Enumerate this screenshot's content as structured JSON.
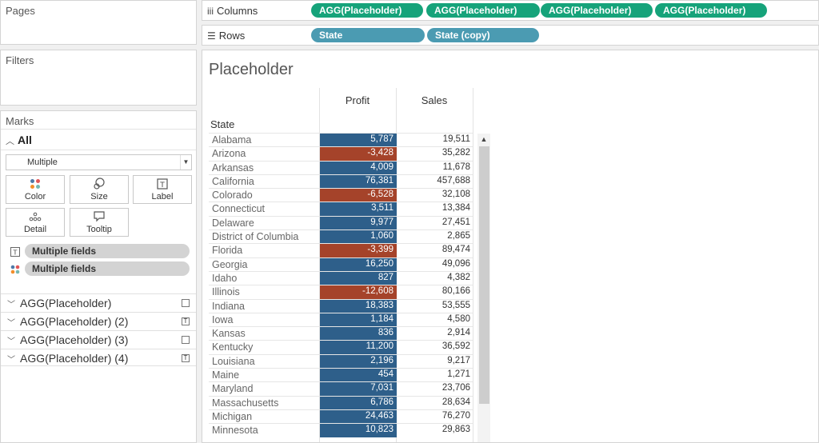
{
  "pages": {
    "title": "Pages"
  },
  "filters": {
    "title": "Filters"
  },
  "marks": {
    "title": "Marks",
    "all_label": "All",
    "mark_type": "Multiple",
    "buttons": {
      "color": "Color",
      "size": "Size",
      "label": "Label",
      "detail": "Detail",
      "tooltip": "Tooltip"
    },
    "fields": [
      "Multiple fields",
      "Multiple fields"
    ],
    "agg_cards": [
      "AGG(Placeholder)",
      "AGG(Placeholder) (2)",
      "AGG(Placeholder) (3)",
      "AGG(Placeholder) (4)"
    ]
  },
  "columns_shelf": {
    "label": "Columns",
    "pills": [
      "AGG(Placeholder)",
      "AGG(Placeholder)",
      "AGG(Placeholder)",
      "AGG(Placeholder)"
    ]
  },
  "rows_shelf": {
    "label": "Rows",
    "pills": [
      "State",
      "State (copy)"
    ]
  },
  "view": {
    "title": "Placeholder",
    "row_header": "State",
    "columns": [
      "Profit",
      "Sales"
    ]
  },
  "colors": {
    "positive": "#2e5f8a",
    "negative": "#a5432a",
    "green_pill": "#16a37a",
    "blue_pill": "#4b9bb2"
  },
  "table": {
    "rows": [
      {
        "state": "Alabama",
        "profit": "5,787",
        "sales": "19,511",
        "negative": false
      },
      {
        "state": "Arizona",
        "profit": "-3,428",
        "sales": "35,282",
        "negative": true
      },
      {
        "state": "Arkansas",
        "profit": "4,009",
        "sales": "11,678",
        "negative": false
      },
      {
        "state": "California",
        "profit": "76,381",
        "sales": "457,688",
        "negative": false
      },
      {
        "state": "Colorado",
        "profit": "-6,528",
        "sales": "32,108",
        "negative": true
      },
      {
        "state": "Connecticut",
        "profit": "3,511",
        "sales": "13,384",
        "negative": false
      },
      {
        "state": "Delaware",
        "profit": "9,977",
        "sales": "27,451",
        "negative": false
      },
      {
        "state": "District of Columbia",
        "profit": "1,060",
        "sales": "2,865",
        "negative": false
      },
      {
        "state": "Florida",
        "profit": "-3,399",
        "sales": "89,474",
        "negative": true
      },
      {
        "state": "Georgia",
        "profit": "16,250",
        "sales": "49,096",
        "negative": false
      },
      {
        "state": "Idaho",
        "profit": "827",
        "sales": "4,382",
        "negative": false
      },
      {
        "state": "Illinois",
        "profit": "-12,608",
        "sales": "80,166",
        "negative": true
      },
      {
        "state": "Indiana",
        "profit": "18,383",
        "sales": "53,555",
        "negative": false
      },
      {
        "state": "Iowa",
        "profit": "1,184",
        "sales": "4,580",
        "negative": false
      },
      {
        "state": "Kansas",
        "profit": "836",
        "sales": "2,914",
        "negative": false
      },
      {
        "state": "Kentucky",
        "profit": "11,200",
        "sales": "36,592",
        "negative": false
      },
      {
        "state": "Louisiana",
        "profit": "2,196",
        "sales": "9,217",
        "negative": false
      },
      {
        "state": "Maine",
        "profit": "454",
        "sales": "1,271",
        "negative": false
      },
      {
        "state": "Maryland",
        "profit": "7,031",
        "sales": "23,706",
        "negative": false
      },
      {
        "state": "Massachusetts",
        "profit": "6,786",
        "sales": "28,634",
        "negative": false
      },
      {
        "state": "Michigan",
        "profit": "24,463",
        "sales": "76,270",
        "negative": false
      },
      {
        "state": "Minnesota",
        "profit": "10,823",
        "sales": "29,863",
        "negative": false
      }
    ]
  }
}
